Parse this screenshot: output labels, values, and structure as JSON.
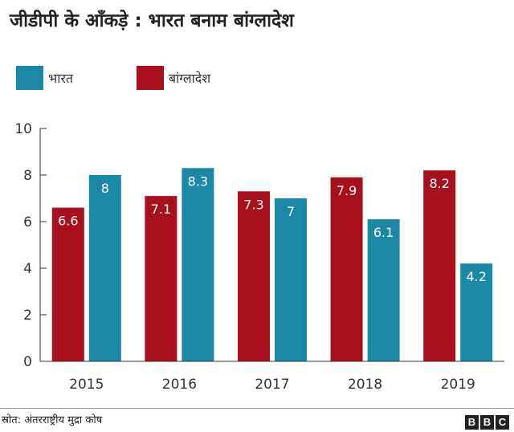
{
  "title": "जीडीपी के आँकड़े : भारत बनाम बांग्लादेश",
  "source": "स्रोत: अंतरराष्ट्रीय मुद्रा कोष",
  "brand": [
    "B",
    "B",
    "C"
  ],
  "colors": {
    "india": "#1b88a8",
    "bangladesh": "#a8101c",
    "axis": "#333333",
    "grid": "#e6e6e6"
  },
  "chart_data": {
    "type": "bar",
    "categories": [
      "2015",
      "2016",
      "2017",
      "2018",
      "2019"
    ],
    "series": [
      {
        "name": "बांग्लादेश",
        "values": [
          6.6,
          7.1,
          7.3,
          7.9,
          8.2
        ],
        "labels": [
          "6.6",
          "7.1",
          "7.3",
          "7.9",
          "8.2"
        ]
      },
      {
        "name": "भारत",
        "values": [
          8,
          8.3,
          7,
          6.1,
          4.2
        ],
        "labels": [
          "8",
          "8.3",
          "7",
          "6.1",
          "4.2"
        ]
      }
    ],
    "legend_order": [
      "भारत",
      "बांग्लादेश"
    ],
    "ylim": [
      0,
      10
    ],
    "yticks": [
      "0",
      "2",
      "4",
      "6",
      "8",
      "10"
    ],
    "grid": false,
    "legend": "top-left"
  }
}
